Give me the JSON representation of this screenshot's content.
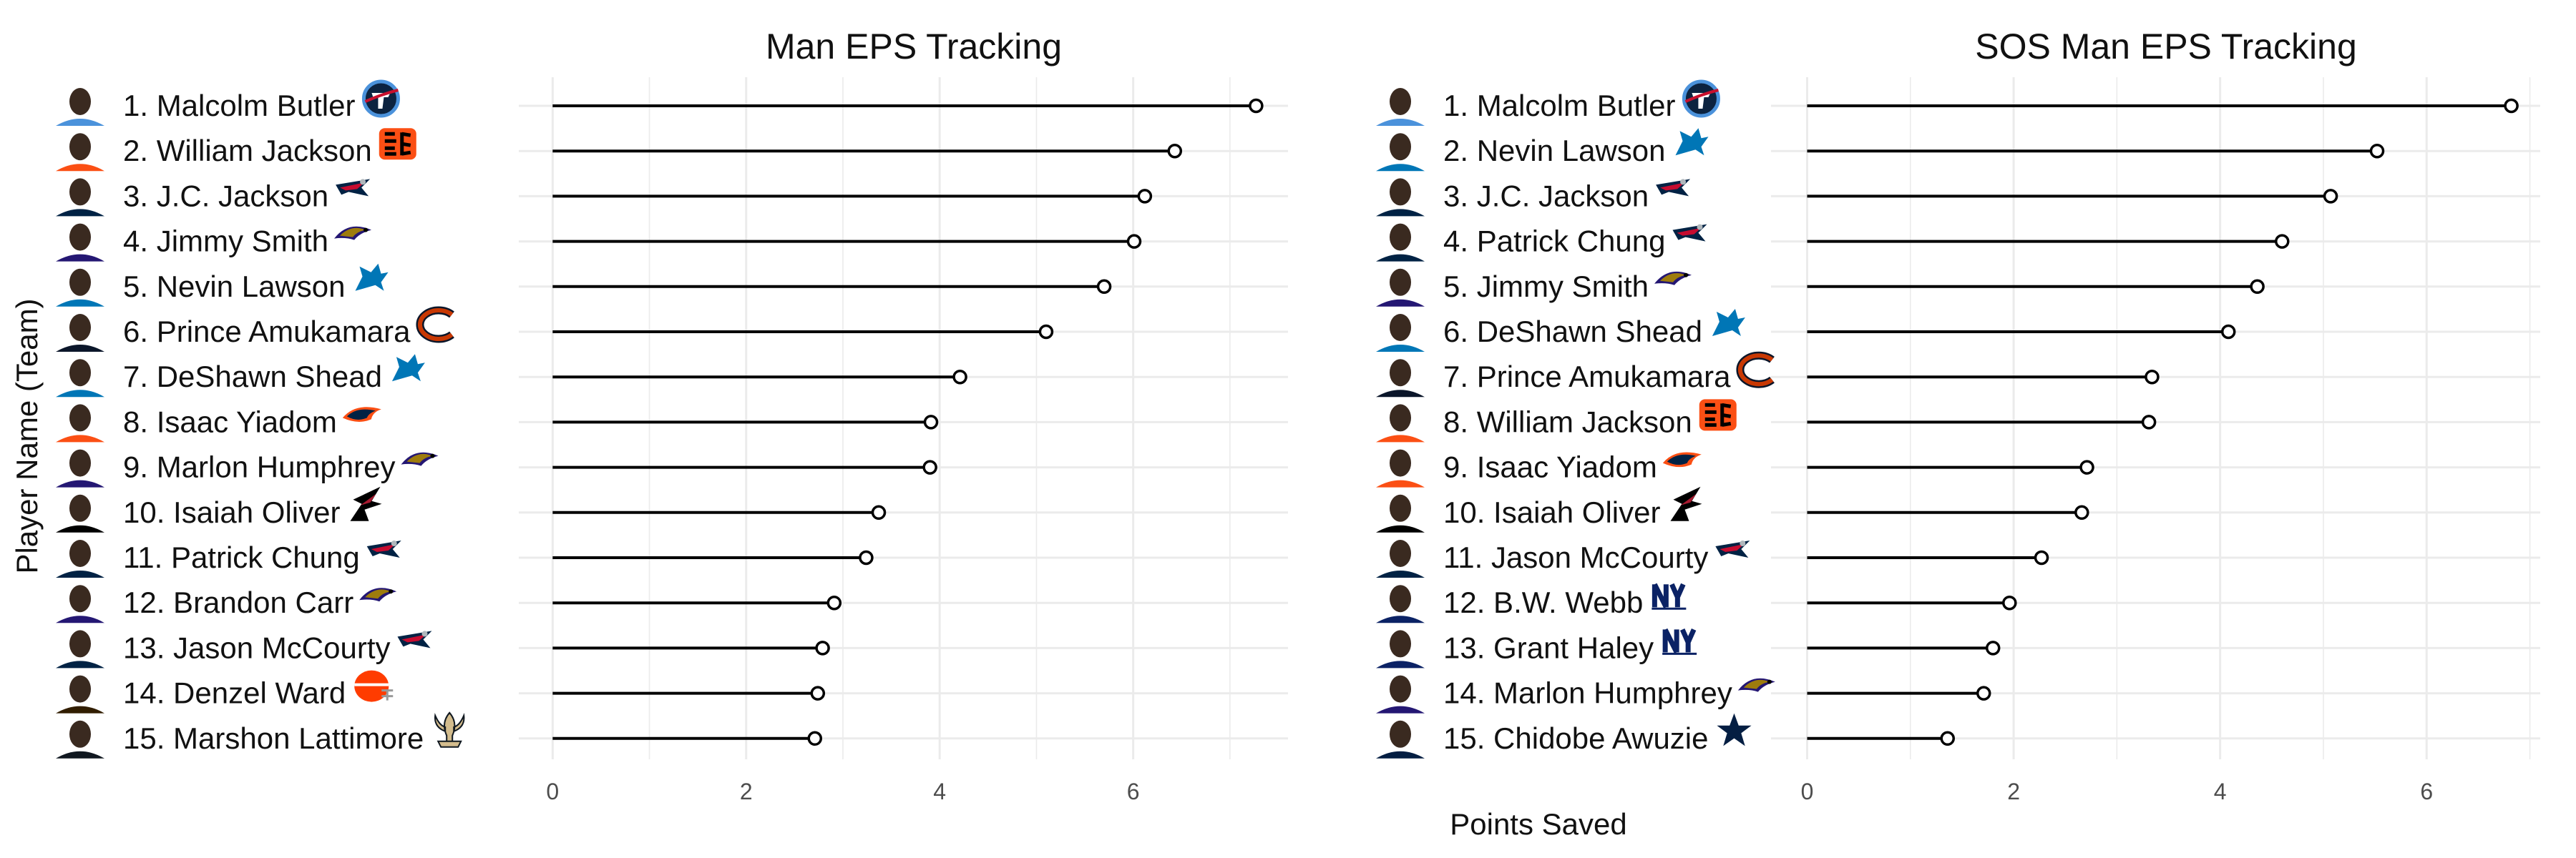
{
  "axis_labels": {
    "x": "Points Saved",
    "y": "Player Name (Team)"
  },
  "colors": {
    "grid": "#ebebeb",
    "segment": "#000000",
    "point_fill": "#ffffff",
    "point_stroke": "#000000",
    "text": "#111111",
    "tick_text": "#4d4d4d"
  },
  "chart_data": [
    {
      "type": "lollipop",
      "title": "Man EPS Tracking",
      "xlabel": "Points Saved",
      "ylabel": "Player Name (Team)",
      "xlim": [
        -0.35,
        7.6
      ],
      "xticks": [
        0,
        2,
        4,
        6
      ],
      "grid": true,
      "players": [
        {
          "label": "1. Malcolm Butler",
          "team": "titans",
          "value": 7.27
        },
        {
          "label": "2. William Jackson",
          "team": "bengals",
          "value": 6.43
        },
        {
          "label": "3. J.C. Jackson",
          "team": "patriots",
          "value": 6.12
        },
        {
          "label": "4. Jimmy Smith",
          "team": "ravens",
          "value": 6.01
        },
        {
          "label": "5. Nevin Lawson",
          "team": "lions",
          "value": 5.7
        },
        {
          "label": "6. Prince Amukamara",
          "team": "bears",
          "value": 5.1
        },
        {
          "label": "7. DeShawn Shead",
          "team": "lions",
          "value": 4.21
        },
        {
          "label": "8. Isaac Yiadom",
          "team": "broncos",
          "value": 3.91
        },
        {
          "label": "9. Marlon Humphrey",
          "team": "ravens",
          "value": 3.9
        },
        {
          "label": "10. Isaiah Oliver",
          "team": "falcons",
          "value": 3.37
        },
        {
          "label": "11. Patrick Chung",
          "team": "patriots",
          "value": 3.24
        },
        {
          "label": "12. Brandon Carr",
          "team": "ravens",
          "value": 2.91
        },
        {
          "label": "13. Jason McCourty",
          "team": "patriots",
          "value": 2.79
        },
        {
          "label": "14. Denzel Ward",
          "team": "browns",
          "value": 2.74
        },
        {
          "label": "15. Marshon Lattimore",
          "team": "saints",
          "value": 2.71
        }
      ]
    },
    {
      "type": "lollipop",
      "title": "SOS Man EPS Tracking",
      "xlabel": "Points Saved",
      "ylabel": "Player Name (Team)",
      "xlim": [
        -0.35,
        7.1
      ],
      "xticks": [
        0,
        2,
        4,
        6
      ],
      "grid": true,
      "players": [
        {
          "label": "1. Malcolm Butler",
          "team": "titans",
          "value": 6.82
        },
        {
          "label": "2. Nevin Lawson",
          "team": "lions",
          "value": 5.52
        },
        {
          "label": "3. J.C. Jackson",
          "team": "patriots",
          "value": 5.07
        },
        {
          "label": "4. Patrick Chung",
          "team": "patriots",
          "value": 4.6
        },
        {
          "label": "5. Jimmy Smith",
          "team": "ravens",
          "value": 4.36
        },
        {
          "label": "6. DeShawn Shead",
          "team": "lions",
          "value": 4.08
        },
        {
          "label": "7. Prince Amukamara",
          "team": "bears",
          "value": 3.34
        },
        {
          "label": "8. William Jackson",
          "team": "bengals",
          "value": 3.31
        },
        {
          "label": "9. Isaac Yiadom",
          "team": "broncos",
          "value": 2.71
        },
        {
          "label": "10. Isaiah Oliver",
          "team": "falcons",
          "value": 2.66
        },
        {
          "label": "11. Jason McCourty",
          "team": "patriots",
          "value": 2.27
        },
        {
          "label": "12. B.W. Webb",
          "team": "giants",
          "value": 1.96
        },
        {
          "label": "13. Grant Haley",
          "team": "giants",
          "value": 1.8
        },
        {
          "label": "14. Marlon Humphrey",
          "team": "ravens",
          "value": 1.71
        },
        {
          "label": "15. Chidobe Awuzie",
          "team": "cowboys",
          "value": 1.36
        }
      ]
    }
  ]
}
